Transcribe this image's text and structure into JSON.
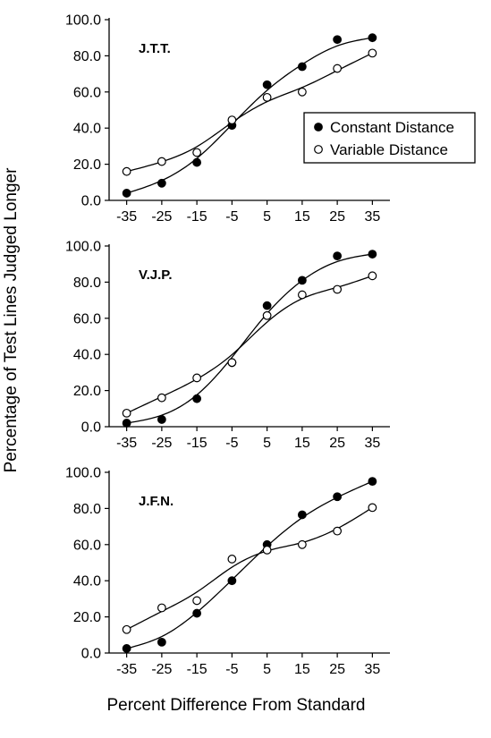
{
  "figure": {
    "ylabel": "Percentage of Test Lines Judged Longer",
    "xlabel": "Percent Difference From Standard"
  },
  "legend": [
    {
      "label": "Constant Distance",
      "marker": "filled"
    },
    {
      "label": "Variable Distance",
      "marker": "open"
    }
  ],
  "colors": {
    "marks": "#000000",
    "background": "#ffffff"
  },
  "chart_data": [
    {
      "type": "scatter",
      "panel_label": "J.T.T.",
      "x": [
        -35,
        -25,
        -15,
        -5,
        5,
        15,
        25,
        35
      ],
      "x_ticks": [
        "-35",
        "-25",
        "-15",
        "-5",
        "5",
        "15",
        "25",
        "35"
      ],
      "y_ticks": [
        "0.0",
        "20.0",
        "40.0",
        "60.0",
        "80.0",
        "100.0"
      ],
      "ylim": [
        0,
        100
      ],
      "xlim": [
        -40,
        40
      ],
      "grid": false,
      "legend_position": "right",
      "fitted_curves": true,
      "series": [
        {
          "name": "Constant Distance",
          "marker": "filled",
          "values": [
            4,
            9.5,
            21,
            41.5,
            64,
            74,
            89,
            90
          ]
        },
        {
          "name": "Variable Distance",
          "marker": "open",
          "values": [
            16,
            21.5,
            26.5,
            44.5,
            57,
            60,
            73,
            81.5
          ]
        }
      ]
    },
    {
      "type": "scatter",
      "panel_label": "V.J.P.",
      "x": [
        -35,
        -25,
        -15,
        -5,
        5,
        15,
        25,
        35
      ],
      "x_ticks": [
        "-35",
        "-25",
        "-15",
        "-5",
        "5",
        "15",
        "25",
        "35"
      ],
      "y_ticks": [
        "0.0",
        "20.0",
        "40.0",
        "60.0",
        "80.0",
        "100.0"
      ],
      "ylim": [
        0,
        100
      ],
      "xlim": [
        -40,
        40
      ],
      "grid": false,
      "fitted_curves": true,
      "series": [
        {
          "name": "Constant Distance",
          "marker": "filled",
          "values": [
            2,
            4,
            15.5,
            35.5,
            67,
            81,
            94.5,
            95.5
          ]
        },
        {
          "name": "Variable Distance",
          "marker": "open",
          "values": [
            7.5,
            16,
            27,
            35.5,
            61.5,
            73,
            76,
            83.5
          ]
        }
      ]
    },
    {
      "type": "scatter",
      "panel_label": "J.F.N.",
      "x": [
        -35,
        -25,
        -15,
        -5,
        5,
        15,
        25,
        35
      ],
      "x_ticks": [
        "-35",
        "-25",
        "-15",
        "-5",
        "5",
        "15",
        "25",
        "35"
      ],
      "y_ticks": [
        "0.0",
        "20.0",
        "40.0",
        "60.0",
        "80.0",
        "100.0"
      ],
      "ylim": [
        0,
        100
      ],
      "xlim": [
        -40,
        40
      ],
      "grid": false,
      "fitted_curves": true,
      "series": [
        {
          "name": "Constant Distance",
          "marker": "filled",
          "values": [
            2.5,
            6,
            22,
            40,
            60,
            76.5,
            86.5,
            95
          ]
        },
        {
          "name": "Variable Distance",
          "marker": "open",
          "values": [
            13,
            25,
            29,
            52,
            57,
            60,
            67.5,
            80.5
          ]
        }
      ]
    }
  ]
}
